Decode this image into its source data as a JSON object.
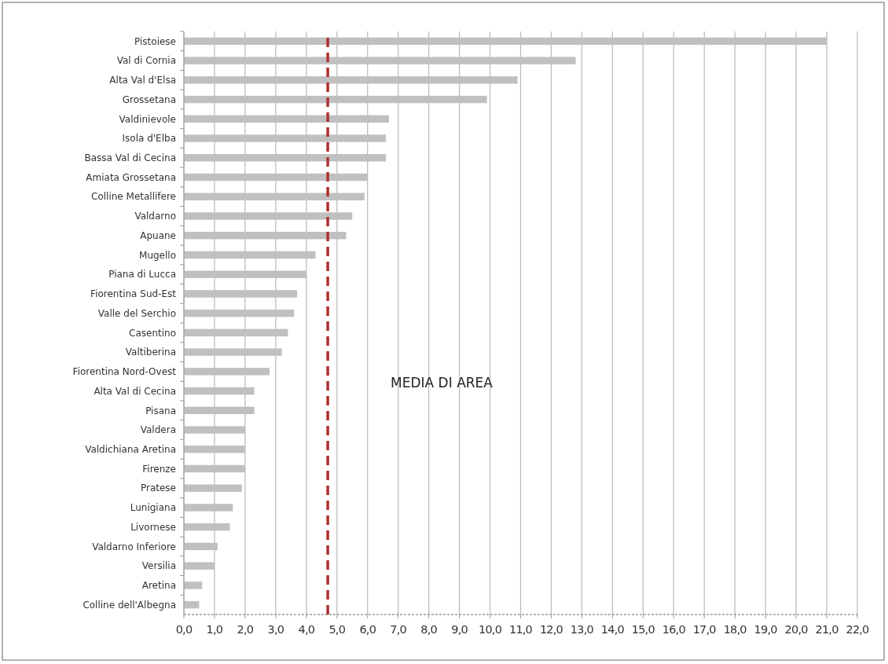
{
  "chart_data": {
    "type": "bar",
    "orientation": "horizontal",
    "categories": [
      "Pistoiese",
      "Val di Cornia",
      "Alta Val d'Elsa",
      "Grossetana",
      "Valdinievole",
      "Isola d'Elba",
      "Bassa Val di Cecina",
      "Amiata Grossetana",
      "Colline Metallifere",
      "Valdarno",
      "Apuane",
      "Mugello",
      "Piana di Lucca",
      "Fiorentina Sud-Est",
      "Valle del Serchio",
      "Casentino",
      "Valtiberina",
      "Fiorentina Nord-Ovest",
      "Alta Val di Cecina",
      "Pisana",
      "Valdera",
      "Valdichiana Aretina",
      "Firenze",
      "Pratese",
      "Lunigiana",
      "Livornese",
      "Valdarno Inferiore",
      "Versilia",
      "Aretina",
      "Colline dell'Albegna"
    ],
    "values": [
      21.0,
      12.8,
      10.9,
      9.9,
      6.7,
      6.6,
      6.6,
      6.0,
      5.9,
      5.5,
      5.3,
      4.3,
      4.0,
      3.7,
      3.6,
      3.4,
      3.2,
      2.8,
      2.3,
      2.3,
      2.0,
      2.0,
      2.0,
      1.9,
      1.6,
      1.5,
      1.1,
      1.0,
      0.6,
      0.5
    ],
    "color": "#c0c0c0",
    "xlim": [
      0,
      22
    ],
    "xticks": [
      {
        "value": 0,
        "label": "0,0"
      },
      {
        "value": 1,
        "label": "1,0"
      },
      {
        "value": 2,
        "label": "2,0"
      },
      {
        "value": 3,
        "label": "3,0"
      },
      {
        "value": 4,
        "label": "4,0"
      },
      {
        "value": 5,
        "label": "5,0"
      },
      {
        "value": 6,
        "label": "6,0"
      },
      {
        "value": 7,
        "label": "7,0"
      },
      {
        "value": 8,
        "label": "8,0"
      },
      {
        "value": 9,
        "label": "9,0"
      },
      {
        "value": 10,
        "label": "10,0"
      },
      {
        "value": 11,
        "label": "11,0"
      },
      {
        "value": 12,
        "label": "12,0"
      },
      {
        "value": 13,
        "label": "13,0"
      },
      {
        "value": 14,
        "label": "14,0"
      },
      {
        "value": 15,
        "label": "15,0"
      },
      {
        "value": 16,
        "label": "16,0"
      },
      {
        "value": 17,
        "label": "17,0"
      },
      {
        "value": 18,
        "label": "18,0"
      },
      {
        "value": 19,
        "label": "19,0"
      },
      {
        "value": 20,
        "label": "20,0"
      },
      {
        "value": 21,
        "label": "21,0"
      },
      {
        "value": 22,
        "label": "22,0"
      }
    ],
    "grid": "x",
    "ref_lines": [
      {
        "axis": "x",
        "value": 4.7,
        "color": "#b03030",
        "line_style": "dashed"
      }
    ],
    "annotations": [
      "MEDIA DI AREA"
    ]
  }
}
